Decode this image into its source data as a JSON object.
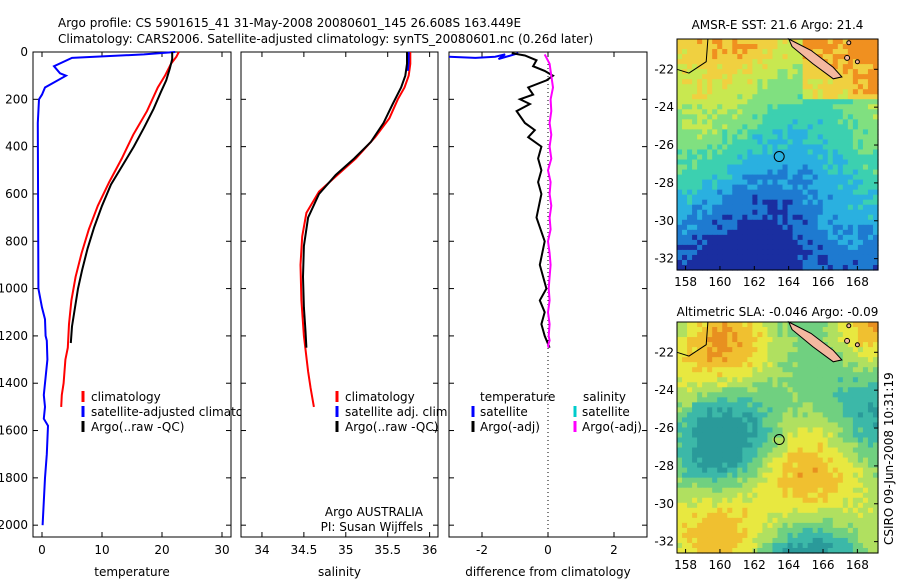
{
  "header": {
    "line1": "Argo profile: CS 5901615_41 31-May-2008 20080601_145 26.608S 163.449E",
    "line2": "Climatology: CARS2006. Satellite-adjusted climatology: synTS_20080601.nc (0.26d later)"
  },
  "side_stamp": "CSIRO 09-Jun-2008 10:31:19",
  "credits": [
    "Argo AUSTRALIA",
    "PI: Susan Wijffels"
  ],
  "chart_data": [
    {
      "type": "line",
      "xlabel": "temperature",
      "ylabel": "",
      "xlim": [
        -1.5,
        31.5
      ],
      "ylim": [
        2050,
        0
      ],
      "y_reversed": true,
      "xticks": [
        0,
        10,
        20,
        30
      ],
      "yticks": [
        0,
        200,
        400,
        600,
        800,
        1000,
        1200,
        1400,
        1600,
        1800,
        2000
      ],
      "legend": [
        "climatology",
        "satellite-adjusted climatology",
        "Argo(..raw -QC)"
      ],
      "series": [
        {
          "name": "climatology",
          "color": "#ff0000",
          "x": [
            22.8,
            22.4,
            21.5,
            20.5,
            19.3,
            17.5,
            15.2,
            13.3,
            11.2,
            9.3,
            7.8,
            6.6,
            5.6,
            4.9,
            4.5,
            4.3,
            3.9,
            3.6,
            3.3,
            3.2
          ],
          "y": [
            0,
            20,
            50,
            100,
            150,
            250,
            350,
            450,
            550,
            650,
            750,
            850,
            950,
            1050,
            1150,
            1250,
            1300,
            1400,
            1450,
            1500
          ]
        },
        {
          "name": "satellite-adjusted climatology",
          "color": "#0000ff",
          "x": [
            22.2,
            17,
            5,
            2,
            3,
            4,
            0.5,
            0,
            -0.5,
            -0.7,
            -0.6,
            0,
            0.5,
            0.6,
            0.8,
            0.9,
            0.5,
            0.3,
            0.5,
            0.3,
            1.0,
            0.8,
            0.5,
            0.3,
            0.1
          ],
          "y": [
            0,
            10,
            25,
            60,
            90,
            100,
            150,
            180,
            200,
            300,
            1000,
            1080,
            1130,
            1200,
            1220,
            1300,
            1400,
            1450,
            1500,
            1550,
            1580,
            1700,
            1800,
            1900,
            2000
          ]
        },
        {
          "name": "Argo(..raw -QC)",
          "color": "#000000",
          "x": [
            21.7,
            21.7,
            21.3,
            20.7,
            19.8,
            18.6,
            17.0,
            15.3,
            13.4,
            11.5,
            10.0,
            8.7,
            7.6,
            6.7,
            6.0,
            5.5,
            5.0,
            4.8
          ],
          "y": [
            0,
            30,
            70,
            120,
            170,
            240,
            320,
            400,
            480,
            560,
            650,
            740,
            830,
            920,
            1000,
            1080,
            1160,
            1230
          ]
        }
      ]
    },
    {
      "type": "line",
      "xlabel": "salinity",
      "ylabel": "",
      "xlim": [
        33.75,
        36.1
      ],
      "ylim": [
        2050,
        0
      ],
      "y_reversed": true,
      "xticks": [
        34,
        34.5,
        35,
        35.5,
        36
      ],
      "legend": [
        "climatology",
        "satellite adj. clim.",
        "Argo(..raw -QC)"
      ],
      "series": [
        {
          "name": "climatology",
          "color": "#ff0000",
          "x": [
            35.77,
            35.77,
            35.75,
            35.7,
            35.62,
            35.52,
            35.35,
            35.12,
            34.9,
            34.68,
            34.53,
            34.48,
            34.46,
            34.47,
            34.5,
            34.55,
            34.58,
            34.62
          ],
          "y": [
            0,
            50,
            100,
            150,
            200,
            280,
            360,
            450,
            520,
            590,
            680,
            780,
            900,
            1050,
            1200,
            1350,
            1420,
            1500
          ]
        },
        {
          "name": "satellite adj. clim.",
          "color": "#0000ff",
          "x": [
            35.75,
            35.75,
            35.74
          ],
          "y": [
            0,
            40,
            80
          ]
        },
        {
          "name": "Argo(..raw -QC)",
          "color": "#000000",
          "x": [
            35.73,
            35.73,
            35.71,
            35.66,
            35.56,
            35.45,
            35.3,
            35.1,
            34.88,
            34.68,
            34.55,
            34.5,
            34.49,
            34.5,
            34.52,
            34.53
          ],
          "y": [
            0,
            50,
            100,
            150,
            220,
            300,
            380,
            450,
            520,
            600,
            700,
            820,
            950,
            1080,
            1180,
            1250
          ]
        }
      ]
    },
    {
      "type": "line",
      "xlabel": "difference from climatology",
      "ylabel": "",
      "xlim": [
        -3.0,
        3.0
      ],
      "ylim": [
        2050,
        0
      ],
      "y_reversed": true,
      "xticks": [
        -2,
        0,
        2
      ],
      "legend_titles": [
        "temperature",
        "salinity"
      ],
      "legend": [
        "satellite",
        "Argo(-adj)",
        "satellite",
        "Argo(-adj)"
      ],
      "series": [
        {
          "name": "satellite",
          "group": "temperature",
          "color": "#0000ff",
          "x": [
            -3.0,
            -2.2,
            -1.6,
            -1.3,
            -1.5,
            -0.9
          ],
          "y": [
            20,
            25,
            20,
            10,
            30,
            5
          ]
        },
        {
          "name": "Argo(-adj)",
          "group": "temperature",
          "color": "#000000",
          "x": [
            -1.1,
            -0.7,
            -0.35,
            -0.45,
            -0.1,
            0.15,
            -0.05,
            -0.6,
            -0.45,
            -0.85,
            -0.55,
            -0.95,
            -0.7,
            -0.4,
            -0.6,
            -0.2,
            -0.3,
            -0.2,
            -0.3,
            -0.2,
            -0.35,
            -0.1,
            -0.25,
            -0.05,
            -0.25,
            -0.1,
            -0.2,
            -0.1,
            0.05
          ],
          "y": [
            5,
            15,
            35,
            60,
            80,
            100,
            120,
            150,
            180,
            200,
            220,
            250,
            300,
            330,
            360,
            400,
            450,
            500,
            550,
            600,
            700,
            800,
            900,
            1000,
            1050,
            1100,
            1150,
            1200,
            1250
          ]
        },
        {
          "name": "satellite",
          "group": "salinity",
          "color": "#00cccc",
          "x": [
            0.5
          ],
          "y": [
            5
          ]
        },
        {
          "name": "Argo(-adj)",
          "group": "salinity",
          "color": "#ff00ff",
          "x": [
            -0.1,
            0.05,
            0.1,
            0.15,
            0.08,
            0.1,
            0.05,
            0.1,
            0.05,
            0.1,
            0.0,
            0.08,
            0.05,
            0.1,
            0.05,
            0.08,
            0.0,
            0.05,
            0.08,
            0.05,
            0.02,
            0.05,
            0.0,
            0.05,
            0.02,
            0.05,
            0.0,
            0.02
          ],
          "y": [
            10,
            50,
            100,
            150,
            200,
            250,
            300,
            350,
            400,
            450,
            500,
            550,
            600,
            650,
            700,
            750,
            800,
            850,
            900,
            950,
            1000,
            1050,
            1100,
            1150,
            1200,
            1220,
            1240,
            1250
          ]
        }
      ]
    },
    {
      "type": "heatmap",
      "title": "AMSR-E SST: 21.6  Argo: 21.4",
      "xticks": [
        158,
        160,
        162,
        164,
        166,
        168
      ],
      "yticks": [
        -22,
        -24,
        -26,
        -28,
        -30,
        -32
      ],
      "xlim": [
        157.5,
        169.2
      ],
      "ylim": [
        -32.6,
        -20.4
      ],
      "profile_marker": {
        "lon": 163.449,
        "lat": -26.608
      },
      "colormap": [
        "#1a2ea0",
        "#1e7ad0",
        "#2ab0e0",
        "#3cd0b0",
        "#80e080",
        "#c8e850",
        "#f0d040",
        "#f09020"
      ]
    },
    {
      "type": "heatmap",
      "title": "Altimetric SLA: -0.046  Argo: -0.09",
      "xticks": [
        158,
        160,
        162,
        164,
        166,
        168
      ],
      "yticks": [
        -22,
        -24,
        -26,
        -28,
        -30,
        -32
      ],
      "xlim": [
        157.5,
        169.2
      ],
      "ylim": [
        -32.6,
        -20.4
      ],
      "profile_marker": {
        "lon": 163.449,
        "lat": -26.608
      },
      "colormap": [
        "#2a9a9a",
        "#3cb8a8",
        "#70d080",
        "#b0e060",
        "#e8e840",
        "#f0c030",
        "#e89020"
      ]
    }
  ]
}
